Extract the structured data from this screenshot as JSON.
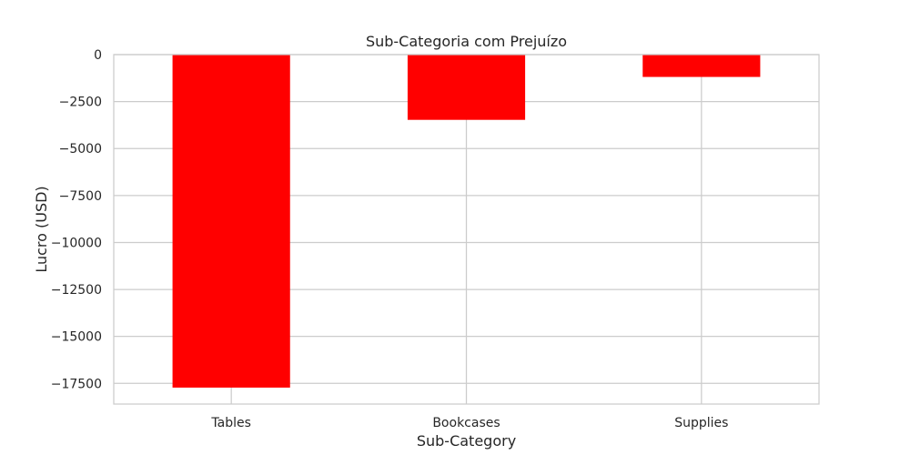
{
  "chart_data": {
    "type": "bar",
    "title": "Sub-Categoria com Prejuízo",
    "xlabel": "Sub-Category",
    "ylabel": "Lucro (USD)",
    "categories": [
      "Tables",
      "Bookcases",
      "Supplies"
    ],
    "values": [
      -17725,
      -3473,
      -1189
    ],
    "ylim": [
      -18600,
      0
    ],
    "yticks": [
      0,
      -2500,
      -5000,
      -7500,
      -10000,
      -12500,
      -15000,
      -17500
    ],
    "ytick_labels": [
      "0",
      "−2500",
      "−5000",
      "−7500",
      "−10000",
      "−12500",
      "−15000",
      "−17500"
    ],
    "grid": true,
    "legend": "none",
    "bar_color": "#ff0000",
    "grid_color": "#cccccc",
    "text_color": "#262626"
  }
}
